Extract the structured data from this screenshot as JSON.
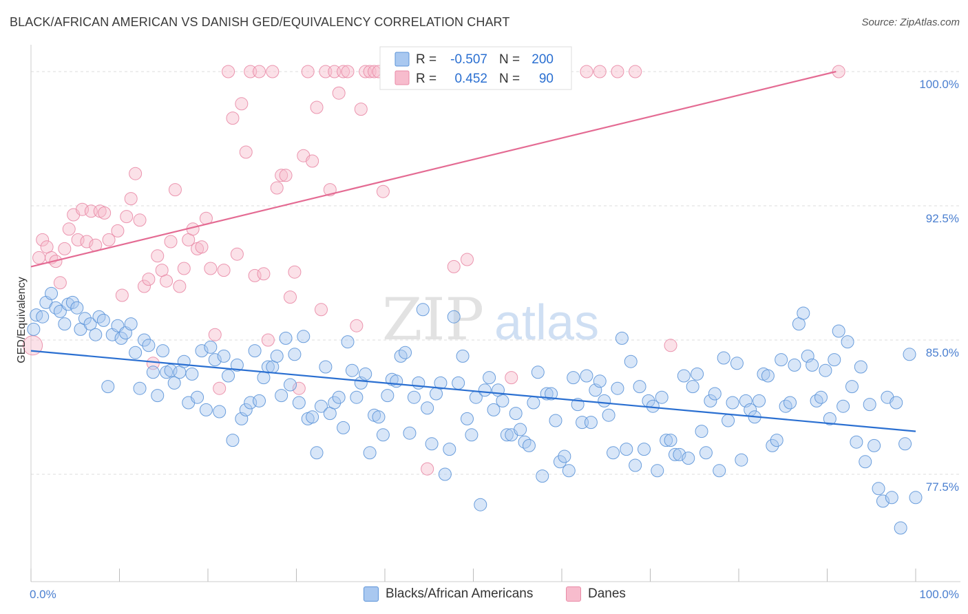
{
  "title": "BLACK/AFRICAN AMERICAN VS DANISH GED/EQUIVALENCY CORRELATION CHART",
  "source": "Source: ZipAtlas.com",
  "watermark": {
    "zip": "ZIP",
    "atlas": "atlas"
  },
  "colors": {
    "blue_fill": "#a9c8f0",
    "blue_stroke": "#5b93d8",
    "blue_line": "#2a6fd1",
    "pink_fill": "#f7bccd",
    "pink_stroke": "#e98aa6",
    "pink_line": "#e46b93",
    "axis_text": "#4a7fd0",
    "grid": "#dddddd"
  },
  "legend_box": {
    "rows": [
      {
        "r_label": "R =",
        "r_value": "-0.507",
        "n_label": "N =",
        "n_value": "200",
        "series": "blue"
      },
      {
        "r_label": "R =",
        "r_value": "0.452",
        "n_label": "N =",
        "n_value": "90",
        "series": "pink"
      }
    ]
  },
  "legend_bottom": [
    {
      "label": "Blacks/African Americans",
      "series": "blue"
    },
    {
      "label": "Danes",
      "series": "pink"
    }
  ],
  "chart_data": {
    "type": "scatter",
    "title": "BLACK/AFRICAN AMERICAN VS DANISH GED/EQUIVALENCY CORRELATION CHART",
    "xlabel": "",
    "ylabel": "GED/Equivalency",
    "xlim": [
      0,
      100
    ],
    "ylim": [
      71.5,
      101.5
    ],
    "x_tick_labels": [
      "0.0%",
      "100.0%"
    ],
    "y_ticks": [
      77.5,
      85.0,
      92.5,
      100.0
    ],
    "y_tick_labels": [
      "77.5%",
      "85.0%",
      "92.5%",
      "100.0%"
    ],
    "grid": "horizontal dashed",
    "legend_placement": "top-center and bottom",
    "series": [
      {
        "name": "Blacks/African Americans",
        "color": "#a9c8f0",
        "trend": {
          "x": [
            0,
            100
          ],
          "y": [
            84.4,
            79.9
          ]
        },
        "points": [
          [
            0.3,
            85.6
          ],
          [
            0.6,
            86.4
          ],
          [
            1.3,
            86.3
          ],
          [
            1.7,
            87.1
          ],
          [
            2.3,
            87.6
          ],
          [
            2.8,
            86.8
          ],
          [
            3.3,
            86.6
          ],
          [
            3.8,
            85.9
          ],
          [
            4.2,
            87.0
          ],
          [
            4.7,
            87.1
          ],
          [
            5.2,
            86.8
          ],
          [
            5.6,
            85.6
          ],
          [
            6.1,
            86.2
          ],
          [
            6.7,
            85.9
          ],
          [
            7.3,
            85.3
          ],
          [
            7.7,
            86.3
          ],
          [
            8.2,
            86.1
          ],
          [
            8.7,
            82.4
          ],
          [
            9.2,
            85.3
          ],
          [
            9.8,
            85.8
          ],
          [
            10.2,
            85.1
          ],
          [
            10.7,
            85.4
          ],
          [
            11.3,
            85.9
          ],
          [
            11.8,
            84.3
          ],
          [
            12.3,
            82.3
          ],
          [
            12.8,
            85.0
          ],
          [
            13.3,
            84.7
          ],
          [
            13.8,
            83.2
          ],
          [
            14.3,
            81.9
          ],
          [
            14.9,
            84.4
          ],
          [
            15.3,
            83.2
          ],
          [
            15.8,
            83.3
          ],
          [
            16.2,
            82.6
          ],
          [
            16.8,
            83.2
          ],
          [
            17.3,
            83.8
          ],
          [
            17.8,
            81.5
          ],
          [
            18.2,
            83.1
          ],
          [
            18.8,
            81.8
          ],
          [
            19.3,
            84.4
          ],
          [
            19.8,
            81.1
          ],
          [
            20.3,
            84.6
          ],
          [
            20.8,
            83.9
          ],
          [
            21.3,
            81.0
          ],
          [
            21.8,
            84.1
          ],
          [
            22.3,
            83.0
          ],
          [
            22.8,
            79.4
          ],
          [
            23.3,
            83.6
          ],
          [
            23.8,
            80.6
          ],
          [
            24.3,
            81.1
          ],
          [
            24.8,
            81.5
          ],
          [
            25.3,
            84.4
          ],
          [
            25.8,
            81.6
          ],
          [
            26.3,
            82.9
          ],
          [
            26.8,
            83.5
          ],
          [
            27.3,
            83.5
          ],
          [
            27.8,
            84.1
          ],
          [
            28.3,
            81.9
          ],
          [
            28.8,
            85.1
          ],
          [
            29.3,
            82.5
          ],
          [
            29.8,
            84.2
          ],
          [
            30.3,
            81.5
          ],
          [
            30.8,
            85.2
          ],
          [
            31.3,
            80.6
          ],
          [
            31.8,
            80.7
          ],
          [
            32.3,
            78.7
          ],
          [
            32.8,
            81.3
          ],
          [
            33.3,
            83.5
          ],
          [
            33.8,
            80.9
          ],
          [
            34.3,
            81.5
          ],
          [
            34.8,
            81.8
          ],
          [
            35.3,
            80.1
          ],
          [
            35.8,
            84.9
          ],
          [
            36.3,
            83.3
          ],
          [
            36.8,
            81.8
          ],
          [
            37.3,
            82.6
          ],
          [
            37.8,
            83.1
          ],
          [
            38.3,
            78.7
          ],
          [
            38.8,
            80.8
          ],
          [
            39.3,
            80.7
          ],
          [
            39.8,
            79.7
          ],
          [
            40.3,
            81.9
          ],
          [
            40.8,
            82.8
          ],
          [
            41.3,
            82.7
          ],
          [
            41.8,
            84.1
          ],
          [
            42.3,
            84.3
          ],
          [
            42.8,
            79.8
          ],
          [
            43.3,
            81.8
          ],
          [
            43.8,
            82.6
          ],
          [
            44.3,
            86.7
          ],
          [
            44.8,
            81.2
          ],
          [
            45.3,
            79.2
          ],
          [
            45.8,
            82.0
          ],
          [
            46.3,
            82.6
          ],
          [
            46.8,
            77.5
          ],
          [
            47.3,
            78.9
          ],
          [
            47.8,
            86.3
          ],
          [
            48.3,
            82.6
          ],
          [
            48.8,
            84.1
          ],
          [
            49.3,
            80.6
          ],
          [
            49.8,
            79.7
          ],
          [
            50.3,
            81.8
          ],
          [
            50.8,
            75.8
          ],
          [
            51.3,
            82.2
          ],
          [
            51.8,
            82.9
          ],
          [
            52.3,
            81.1
          ],
          [
            52.8,
            82.2
          ],
          [
            53.3,
            81.6
          ],
          [
            53.8,
            79.7
          ],
          [
            54.3,
            79.7
          ],
          [
            54.8,
            80.9
          ],
          [
            55.3,
            80.0
          ],
          [
            55.8,
            79.3
          ],
          [
            56.3,
            79.1
          ],
          [
            56.8,
            81.5
          ],
          [
            57.3,
            83.2
          ],
          [
            57.8,
            77.4
          ],
          [
            58.3,
            82.0
          ],
          [
            58.8,
            82.0
          ],
          [
            59.3,
            80.5
          ],
          [
            59.8,
            78.2
          ],
          [
            60.3,
            78.5
          ],
          [
            60.8,
            77.7
          ],
          [
            61.3,
            82.9
          ],
          [
            61.8,
            81.4
          ],
          [
            62.3,
            80.4
          ],
          [
            62.8,
            83.0
          ],
          [
            63.3,
            80.4
          ],
          [
            63.8,
            82.2
          ],
          [
            64.3,
            82.7
          ],
          [
            64.8,
            81.6
          ],
          [
            65.3,
            80.8
          ],
          [
            65.8,
            78.7
          ],
          [
            66.3,
            82.3
          ],
          [
            66.8,
            85.1
          ],
          [
            67.3,
            78.9
          ],
          [
            67.8,
            83.8
          ],
          [
            68.3,
            78.0
          ],
          [
            68.8,
            82.4
          ],
          [
            69.3,
            78.9
          ],
          [
            69.8,
            81.6
          ],
          [
            70.3,
            81.3
          ],
          [
            70.8,
            77.7
          ],
          [
            71.3,
            81.8
          ],
          [
            71.8,
            79.4
          ],
          [
            72.3,
            79.4
          ],
          [
            72.8,
            78.6
          ],
          [
            73.3,
            78.6
          ],
          [
            73.8,
            83.0
          ],
          [
            74.3,
            78.4
          ],
          [
            74.8,
            82.4
          ],
          [
            75.3,
            83.1
          ],
          [
            75.8,
            79.9
          ],
          [
            76.3,
            78.7
          ],
          [
            76.8,
            81.6
          ],
          [
            77.3,
            82.0
          ],
          [
            77.8,
            77.7
          ],
          [
            78.3,
            84.0
          ],
          [
            78.8,
            80.5
          ],
          [
            79.3,
            81.5
          ],
          [
            79.8,
            83.7
          ],
          [
            80.3,
            78.3
          ],
          [
            80.8,
            81.6
          ],
          [
            81.3,
            81.1
          ],
          [
            81.8,
            80.7
          ],
          [
            82.3,
            81.6
          ],
          [
            82.8,
            83.1
          ],
          [
            83.3,
            83.0
          ],
          [
            83.8,
            79.1
          ],
          [
            84.3,
            79.4
          ],
          [
            84.8,
            83.9
          ],
          [
            85.3,
            81.3
          ],
          [
            85.8,
            81.5
          ],
          [
            86.3,
            83.6
          ],
          [
            86.8,
            85.9
          ],
          [
            87.3,
            86.5
          ],
          [
            87.8,
            84.1
          ],
          [
            88.3,
            83.6
          ],
          [
            88.8,
            81.6
          ],
          [
            89.3,
            81.8
          ],
          [
            89.8,
            83.3
          ],
          [
            90.3,
            80.6
          ],
          [
            90.8,
            83.9
          ],
          [
            91.3,
            85.5
          ],
          [
            91.8,
            81.3
          ],
          [
            92.3,
            84.9
          ],
          [
            92.8,
            82.4
          ],
          [
            93.3,
            79.3
          ],
          [
            93.8,
            83.5
          ],
          [
            94.3,
            78.2
          ],
          [
            94.8,
            81.4
          ],
          [
            95.3,
            79.1
          ],
          [
            95.8,
            76.7
          ],
          [
            96.3,
            76.0
          ],
          [
            96.8,
            81.8
          ],
          [
            97.3,
            76.2
          ],
          [
            97.8,
            81.5
          ],
          [
            98.3,
            74.5
          ],
          [
            98.8,
            79.2
          ],
          [
            99.3,
            84.2
          ],
          [
            100.0,
            76.2
          ]
        ]
      },
      {
        "name": "Danes",
        "color": "#f7bccd",
        "trend": {
          "x": [
            0,
            91
          ],
          "y": [
            89.1,
            100.0
          ]
        },
        "points": [
          [
            0.2,
            84.7
          ],
          [
            0.9,
            89.6
          ],
          [
            1.3,
            90.6
          ],
          [
            1.8,
            90.2
          ],
          [
            2.3,
            89.6
          ],
          [
            2.8,
            89.4
          ],
          [
            3.3,
            88.2
          ],
          [
            3.8,
            90.1
          ],
          [
            4.3,
            91.2
          ],
          [
            4.8,
            92.0
          ],
          [
            5.3,
            90.6
          ],
          [
            5.8,
            92.3
          ],
          [
            6.3,
            90.5
          ],
          [
            6.8,
            92.2
          ],
          [
            7.3,
            90.3
          ],
          [
            7.8,
            92.2
          ],
          [
            8.3,
            92.1
          ],
          [
            8.8,
            90.6
          ],
          [
            9.8,
            91.1
          ],
          [
            10.3,
            87.5
          ],
          [
            10.8,
            91.9
          ],
          [
            11.3,
            92.9
          ],
          [
            11.8,
            94.3
          ],
          [
            12.3,
            91.7
          ],
          [
            12.8,
            88.0
          ],
          [
            13.3,
            88.4
          ],
          [
            13.8,
            83.7
          ],
          [
            14.3,
            89.7
          ],
          [
            14.8,
            88.9
          ],
          [
            15.3,
            88.3
          ],
          [
            15.8,
            90.5
          ],
          [
            16.3,
            93.4
          ],
          [
            16.8,
            88.0
          ],
          [
            17.3,
            89.0
          ],
          [
            17.8,
            90.6
          ],
          [
            18.3,
            91.2
          ],
          [
            18.8,
            90.1
          ],
          [
            19.3,
            90.2
          ],
          [
            19.8,
            91.8
          ],
          [
            20.3,
            89.0
          ],
          [
            20.8,
            85.3
          ],
          [
            21.3,
            82.3
          ],
          [
            21.8,
            88.9
          ],
          [
            22.3,
            100.0
          ],
          [
            22.8,
            97.4
          ],
          [
            23.3,
            89.8
          ],
          [
            23.8,
            98.2
          ],
          [
            24.3,
            95.5
          ],
          [
            24.8,
            100.0
          ],
          [
            25.3,
            88.6
          ],
          [
            25.8,
            100.0
          ],
          [
            26.3,
            88.7
          ],
          [
            26.8,
            85.0
          ],
          [
            27.3,
            100.0
          ],
          [
            27.8,
            93.5
          ],
          [
            28.3,
            94.2
          ],
          [
            28.8,
            94.2
          ],
          [
            29.3,
            87.4
          ],
          [
            29.8,
            88.8
          ],
          [
            30.3,
            82.3
          ],
          [
            30.8,
            95.3
          ],
          [
            31.3,
            100.0
          ],
          [
            31.8,
            95.0
          ],
          [
            32.3,
            98.0
          ],
          [
            32.8,
            86.7
          ],
          [
            33.3,
            100.0
          ],
          [
            33.8,
            93.4
          ],
          [
            34.3,
            100.0
          ],
          [
            34.8,
            98.8
          ],
          [
            35.3,
            100.0
          ],
          [
            35.8,
            100.0
          ],
          [
            36.8,
            85.8
          ],
          [
            37.3,
            97.9
          ],
          [
            37.8,
            100.0
          ],
          [
            38.3,
            100.0
          ],
          [
            38.8,
            100.0
          ],
          [
            39.3,
            100.0
          ],
          [
            39.8,
            93.3
          ],
          [
            44.8,
            77.8
          ],
          [
            47.8,
            89.1
          ],
          [
            49.3,
            89.5
          ],
          [
            50.3,
            100.0
          ],
          [
            53.3,
            100.0
          ],
          [
            54.3,
            82.9
          ],
          [
            62.8,
            100.0
          ],
          [
            64.3,
            100.0
          ],
          [
            66.3,
            100.0
          ],
          [
            68.3,
            100.0
          ],
          [
            72.3,
            84.7
          ],
          [
            91.3,
            100.0
          ]
        ]
      }
    ]
  }
}
